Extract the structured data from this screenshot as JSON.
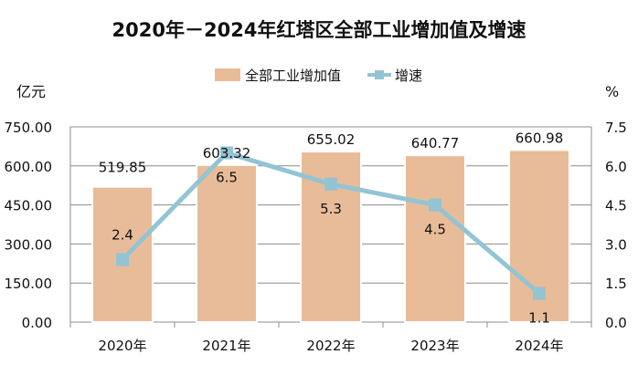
{
  "chart_data": {
    "type": "bar+line",
    "title": "2020年－2024年红塔区全部工业增加值及增速",
    "categories": [
      "2020年",
      "2021年",
      "2022年",
      "2023年",
      "2024年"
    ],
    "series": [
      {
        "name": "全部工业增加值",
        "type": "bar",
        "axis": "left",
        "values": [
          519.85,
          603.32,
          655.02,
          640.77,
          660.98
        ],
        "labels": [
          "519.85",
          "603.32",
          "655.02",
          "640.77",
          "660.98"
        ],
        "color": "#E8BC98"
      },
      {
        "name": "增速",
        "type": "line",
        "axis": "right",
        "values": [
          2.4,
          6.5,
          5.3,
          4.5,
          1.1
        ],
        "labels": [
          "2.4",
          "6.5",
          "5.3",
          "4.5",
          "1.1"
        ],
        "color": "#92C4D4"
      }
    ],
    "left_axis": {
      "unit": "亿元",
      "ylim": [
        0,
        750
      ],
      "ticks": [
        "0.00",
        "150.00",
        "300.00",
        "450.00",
        "600.00",
        "750.00"
      ]
    },
    "right_axis": {
      "unit": "%",
      "ylim": [
        0,
        7.5
      ],
      "ticks": [
        "0.0",
        "1.5",
        "3.0",
        "4.5",
        "6.0",
        "7.5"
      ]
    },
    "grid": true,
    "legend": "top"
  }
}
